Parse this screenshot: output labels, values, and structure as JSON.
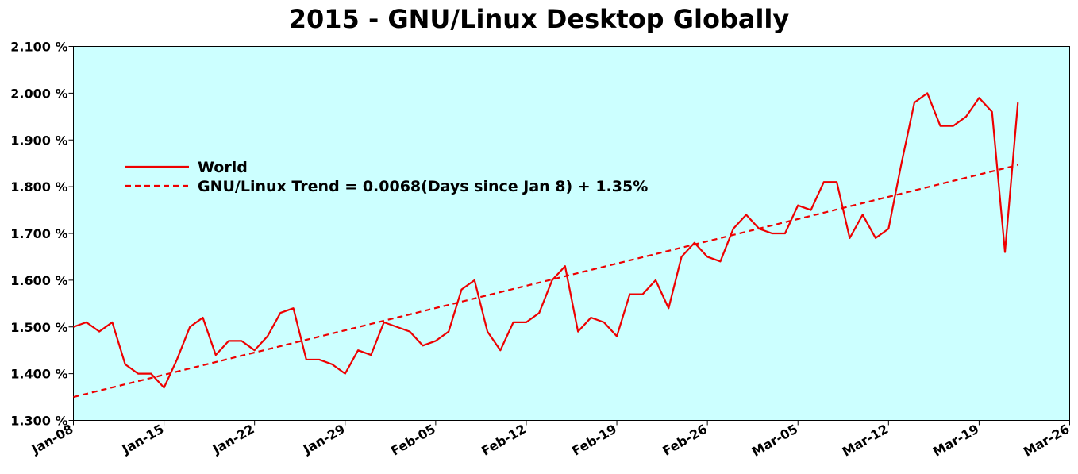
{
  "chart_data": {
    "type": "line",
    "title": "2015 - GNU/Linux Desktop Globally",
    "xlabel": "",
    "ylabel": "",
    "x_start": "Jan-08",
    "xlim_days": [
      0,
      77
    ],
    "ylim": [
      1.3,
      2.1
    ],
    "y_ticks": [
      "1.300 %",
      "1.400 %",
      "1.500 %",
      "1.600 %",
      "1.700 %",
      "1.800 %",
      "1.900 %",
      "2.000 %",
      "2.100 %"
    ],
    "x_ticks": [
      "Jan-08",
      "Jan-15",
      "Jan-22",
      "Jan-29",
      "Feb-05",
      "Feb-12",
      "Feb-19",
      "Feb-26",
      "Mar-05",
      "Mar-12",
      "Mar-19",
      "Mar-26"
    ],
    "grid": false,
    "background": "#ccffff",
    "legend_position": "upper-left",
    "series": [
      {
        "name": "World",
        "color": "#ee0000",
        "style": "solid",
        "x": [
          "Jan-08",
          "Jan-09",
          "Jan-10",
          "Jan-11",
          "Jan-12",
          "Jan-13",
          "Jan-14",
          "Jan-15",
          "Jan-16",
          "Jan-17",
          "Jan-18",
          "Jan-19",
          "Jan-20",
          "Jan-21",
          "Jan-22",
          "Jan-23",
          "Jan-24",
          "Jan-25",
          "Jan-26",
          "Jan-27",
          "Jan-28",
          "Jan-29",
          "Jan-30",
          "Jan-31",
          "Feb-01",
          "Feb-02",
          "Feb-03",
          "Feb-04",
          "Feb-05",
          "Feb-06",
          "Feb-07",
          "Feb-08",
          "Feb-09",
          "Feb-10",
          "Feb-11",
          "Feb-12",
          "Feb-13",
          "Feb-14",
          "Feb-15",
          "Feb-16",
          "Feb-17",
          "Feb-18",
          "Feb-19",
          "Feb-20",
          "Feb-21",
          "Feb-22",
          "Feb-23",
          "Feb-24",
          "Feb-25",
          "Feb-26",
          "Feb-27",
          "Feb-28",
          "Mar-01",
          "Mar-02",
          "Mar-03",
          "Mar-04",
          "Mar-05",
          "Mar-06",
          "Mar-07",
          "Mar-08",
          "Mar-09",
          "Mar-10",
          "Mar-11",
          "Mar-12",
          "Mar-13",
          "Mar-14",
          "Mar-15",
          "Mar-16",
          "Mar-17",
          "Mar-18",
          "Mar-19",
          "Mar-20",
          "Mar-21",
          "Mar-22"
        ],
        "values": [
          1.5,
          1.51,
          1.49,
          1.51,
          1.42,
          1.4,
          1.4,
          1.37,
          1.43,
          1.5,
          1.52,
          1.44,
          1.47,
          1.47,
          1.45,
          1.48,
          1.53,
          1.54,
          1.43,
          1.43,
          1.42,
          1.4,
          1.45,
          1.44,
          1.51,
          1.5,
          1.49,
          1.46,
          1.47,
          1.49,
          1.58,
          1.6,
          1.49,
          1.45,
          1.51,
          1.51,
          1.53,
          1.6,
          1.63,
          1.49,
          1.52,
          1.51,
          1.48,
          1.57,
          1.57,
          1.6,
          1.54,
          1.65,
          1.68,
          1.65,
          1.64,
          1.71,
          1.74,
          1.71,
          1.7,
          1.7,
          1.76,
          1.75,
          1.81,
          1.81,
          1.69,
          1.74,
          1.69,
          1.71,
          1.85,
          1.98,
          2.0,
          1.93,
          1.93,
          1.95,
          1.99,
          1.96,
          1.66,
          1.98
        ]
      },
      {
        "name": "GNU/Linux Trend = 0.0068(Days since Jan 8) + 1.35%",
        "color": "#ee0000",
        "style": "dashed",
        "x": [
          "Jan-08",
          "Mar-22"
        ],
        "values": [
          1.35,
          1.8464
        ]
      }
    ]
  }
}
